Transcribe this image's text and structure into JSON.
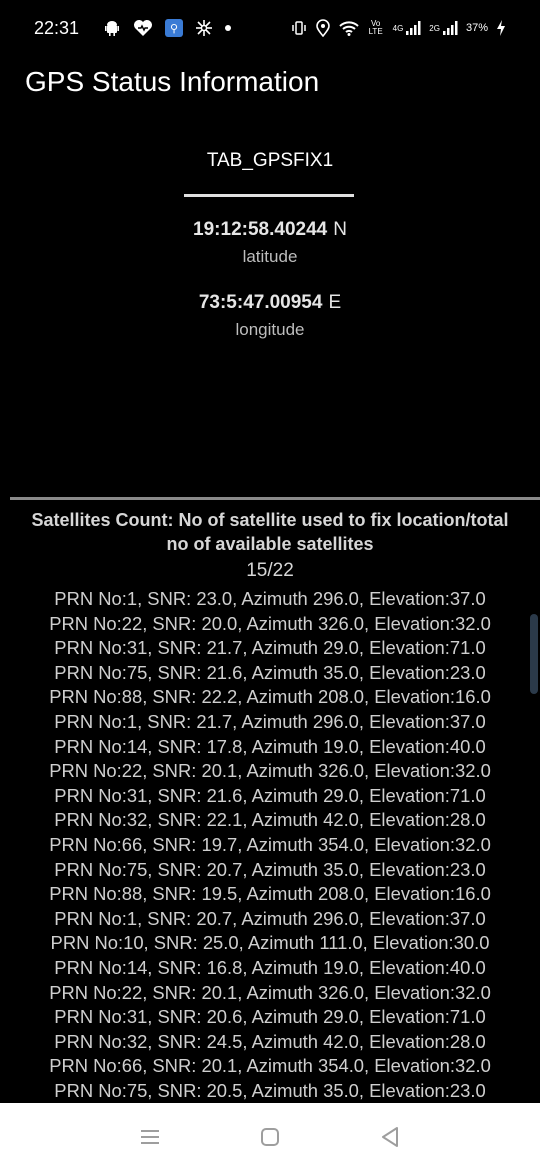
{
  "status_bar": {
    "time": "22:31",
    "left_icons": [
      "android-debug-icon",
      "heart-icon",
      "usb-icon",
      "fan-icon",
      "notification-dot-icon"
    ],
    "right_icons": [
      "vibrate-icon",
      "location-icon",
      "wifi-icon",
      "volte-icon",
      "signal-4g-icon",
      "signal-2g-icon",
      "charging-icon"
    ],
    "volte_label": "Vo LTE",
    "net1_label": "4G",
    "net2_label": "2G",
    "battery": "37%"
  },
  "app": {
    "title": "GPS Status Information"
  },
  "tab": {
    "label": "TAB_GPSFIX1"
  },
  "location": {
    "latitude_value": "19:12:58.40244",
    "latitude_dir": "N",
    "latitude_label": "latitude",
    "longitude_value": "73:5:47.00954",
    "longitude_dir": "E",
    "longitude_label": "longitude"
  },
  "satellites": {
    "header": "Satellites Count: No of satellite used to fix location/total no of available satellites",
    "header_line1": "Satellites Count: No of satellite used to fix location/total",
    "header_line2": "no of available satellites",
    "count": "15/22",
    "rows": [
      "PRN No:1, SNR: 23.0, Azimuth 296.0, Elevation:37.0",
      "PRN No:22, SNR: 20.0, Azimuth 326.0, Elevation:32.0",
      "PRN No:31, SNR: 21.7, Azimuth 29.0, Elevation:71.0",
      "PRN No:75, SNR: 21.6, Azimuth 35.0, Elevation:23.0",
      "PRN No:88, SNR: 22.2, Azimuth 208.0, Elevation:16.0",
      "PRN No:1, SNR: 21.7, Azimuth 296.0, Elevation:37.0",
      "PRN No:14, SNR: 17.8, Azimuth 19.0, Elevation:40.0",
      "PRN No:22, SNR: 20.1, Azimuth 326.0, Elevation:32.0",
      "PRN No:31, SNR: 21.6, Azimuth 29.0, Elevation:71.0",
      "PRN No:32, SNR: 22.1, Azimuth 42.0, Elevation:28.0",
      "PRN No:66, SNR: 19.7, Azimuth 354.0, Elevation:32.0",
      "PRN No:75, SNR: 20.7, Azimuth 35.0, Elevation:23.0",
      "PRN No:88, SNR: 19.5, Azimuth 208.0, Elevation:16.0",
      "PRN No:1, SNR: 20.7, Azimuth 296.0, Elevation:37.0",
      "PRN No:10, SNR: 25.0, Azimuth 111.0, Elevation:30.0",
      "PRN No:14, SNR: 16.8, Azimuth 19.0, Elevation:40.0",
      "PRN No:22, SNR: 20.1, Azimuth 326.0, Elevation:32.0",
      "PRN No:31, SNR: 20.6, Azimuth 29.0, Elevation:71.0",
      "PRN No:32, SNR: 24.5, Azimuth 42.0, Elevation:28.0",
      "PRN No:66, SNR: 20.1, Azimuth 354.0, Elevation:32.0",
      "PRN No:75, SNR: 20.5, Azimuth 35.0, Elevation:23.0"
    ]
  },
  "nav_bar": {
    "buttons": [
      "menu-icon",
      "home-icon",
      "back-icon"
    ]
  },
  "colors": {
    "background": "#000000",
    "text_primary": "#ffffff",
    "text_secondary": "#bdbdbd",
    "divider": "#8a8a8a",
    "nav_background": "#ffffff",
    "nav_icon": "#9e9e9e"
  }
}
